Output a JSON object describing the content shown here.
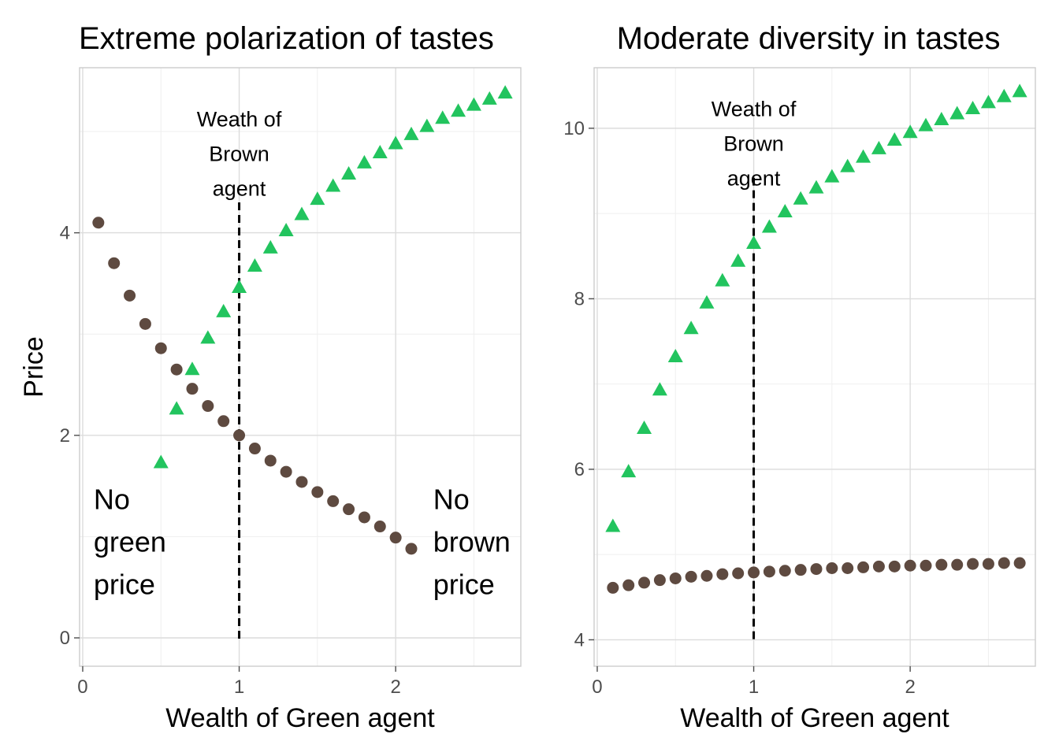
{
  "colors": {
    "green": "#22c45e",
    "brown": "#5e4a40",
    "grid": "#dcdcdc",
    "border": "#cccccc"
  },
  "chart_data": [
    {
      "type": "scatter",
      "title": "Extreme polarization of tastes",
      "xlabel": "Wealth of Green agent",
      "ylabel": "Price",
      "xlim": [
        -0.02,
        2.8
      ],
      "ylim": [
        -0.28,
        5.63
      ],
      "x_ticks": [
        0,
        1,
        2
      ],
      "y_ticks": [
        0,
        2,
        4
      ],
      "grid": true,
      "series": [
        {
          "key": "green",
          "shape": "triangle",
          "x": [
            0.5,
            0.6,
            0.7,
            0.8,
            0.9,
            1.0,
            1.1,
            1.2,
            1.3,
            1.4,
            1.5,
            1.6,
            1.7,
            1.8,
            1.9,
            2.0,
            2.1,
            2.2,
            2.3,
            2.4,
            2.5,
            2.6,
            2.7
          ],
          "y": [
            1.73,
            2.26,
            2.65,
            2.96,
            3.22,
            3.46,
            3.67,
            3.85,
            4.02,
            4.18,
            4.33,
            4.46,
            4.58,
            4.69,
            4.79,
            4.88,
            4.97,
            5.05,
            5.13,
            5.2,
            5.26,
            5.32,
            5.38
          ]
        },
        {
          "key": "brown",
          "shape": "circle",
          "x": [
            0.1,
            0.2,
            0.3,
            0.4,
            0.5,
            0.6,
            0.7,
            0.8,
            0.9,
            1.0,
            1.1,
            1.2,
            1.3,
            1.4,
            1.5,
            1.6,
            1.7,
            1.8,
            1.9,
            2.0,
            2.1
          ],
          "y": [
            4.1,
            3.7,
            3.38,
            3.1,
            2.86,
            2.65,
            2.46,
            2.29,
            2.14,
            2.0,
            1.87,
            1.75,
            1.64,
            1.54,
            1.44,
            1.35,
            1.27,
            1.19,
            1.1,
            0.99,
            0.88
          ]
        }
      ],
      "vline": {
        "x": 1,
        "y_top": 4.3
      },
      "annotations": [
        {
          "key": "brown_wealth",
          "lines": [
            "Weath of",
            "Brown",
            "agent"
          ],
          "x": 1.0,
          "y": 5.05,
          "color_key": "text"
        },
        {
          "key": "no_green",
          "lines": [
            "No",
            "green",
            "price"
          ],
          "x": 0.07,
          "y": 1.27,
          "color_key": "green"
        },
        {
          "key": "no_brown",
          "lines": [
            "No",
            "brown",
            "price"
          ],
          "x": 2.24,
          "y": 1.27,
          "color_key": "brown"
        }
      ]
    },
    {
      "type": "scatter",
      "title": "Moderate diversity in tastes",
      "xlabel": "Wealth of Green agent",
      "ylabel": "",
      "xlim": [
        -0.02,
        2.8
      ],
      "ylim": [
        3.69,
        10.71
      ],
      "x_ticks": [
        0,
        1,
        2
      ],
      "y_ticks": [
        4,
        6,
        8,
        10
      ],
      "grid": true,
      "series": [
        {
          "key": "green",
          "shape": "triangle",
          "x": [
            0.1,
            0.2,
            0.3,
            0.4,
            0.5,
            0.6,
            0.7,
            0.8,
            0.9,
            1.0,
            1.1,
            1.2,
            1.3,
            1.4,
            1.5,
            1.6,
            1.7,
            1.8,
            1.9,
            2.0,
            2.1,
            2.2,
            2.3,
            2.4,
            2.5,
            2.6,
            2.7
          ],
          "y": [
            5.33,
            5.97,
            6.48,
            6.93,
            7.32,
            7.65,
            7.95,
            8.21,
            8.44,
            8.65,
            8.84,
            9.02,
            9.17,
            9.3,
            9.43,
            9.55,
            9.66,
            9.76,
            9.86,
            9.95,
            10.03,
            10.1,
            10.17,
            10.23,
            10.3,
            10.37,
            10.43
          ]
        },
        {
          "key": "brown",
          "shape": "circle",
          "x": [
            0.1,
            0.2,
            0.3,
            0.4,
            0.5,
            0.6,
            0.7,
            0.8,
            0.9,
            1.0,
            1.1,
            1.2,
            1.3,
            1.4,
            1.5,
            1.6,
            1.7,
            1.8,
            1.9,
            2.0,
            2.1,
            2.2,
            2.3,
            2.4,
            2.5,
            2.6,
            2.7
          ],
          "y": [
            4.61,
            4.64,
            4.67,
            4.7,
            4.72,
            4.74,
            4.75,
            4.77,
            4.78,
            4.79,
            4.8,
            4.81,
            4.82,
            4.83,
            4.84,
            4.84,
            4.85,
            4.86,
            4.86,
            4.87,
            4.87,
            4.88,
            4.88,
            4.89,
            4.89,
            4.9,
            4.9
          ]
        }
      ],
      "vline": {
        "x": 1,
        "y_top": 9.42
      },
      "annotations": [
        {
          "key": "brown_wealth",
          "lines": [
            "Weath of",
            "Brown",
            "agent"
          ],
          "x": 1.0,
          "y": 10.14,
          "color_key": "text"
        }
      ]
    }
  ]
}
